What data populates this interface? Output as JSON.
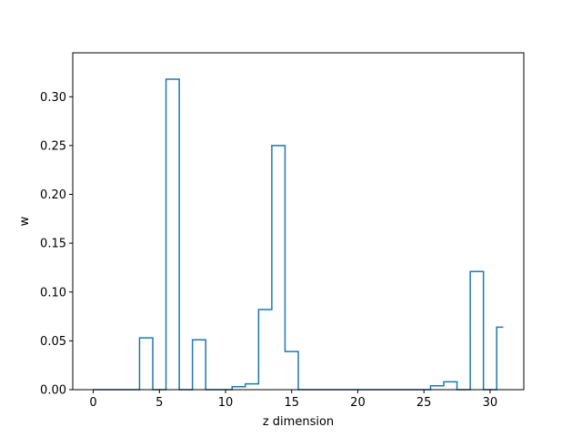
{
  "chart_data": {
    "type": "line",
    "style": "step",
    "xlabel": "z dimension",
    "ylabel": "w",
    "xlim": [
      -1.55,
      32.55
    ],
    "ylim": [
      0.0,
      0.345
    ],
    "x_ticks": [
      0,
      5,
      10,
      15,
      20,
      25,
      30
    ],
    "y_ticks": [
      0.0,
      0.05,
      0.1,
      0.15,
      0.2,
      0.25,
      0.3
    ],
    "line_color": "#1f77b4",
    "grid": false,
    "series": [
      {
        "x": [
          0,
          1,
          2,
          3,
          4,
          5,
          6,
          7,
          8,
          9,
          10,
          11,
          12,
          13,
          14,
          15,
          16,
          17,
          18,
          19,
          20,
          21,
          22,
          23,
          24,
          25,
          26,
          27,
          28,
          29,
          30,
          31
        ],
        "values": [
          0.0,
          0.0,
          0.0,
          0.0,
          0.053,
          0.0,
          0.318,
          0.0,
          0.051,
          0.0,
          0.0,
          0.003,
          0.006,
          0.082,
          0.25,
          0.039,
          0.0,
          0.0,
          0.0,
          0.0,
          0.0,
          0.0,
          0.0,
          0.0,
          0.0,
          0.0,
          0.004,
          0.008,
          0.0,
          0.121,
          0.0,
          0.064
        ]
      }
    ]
  }
}
